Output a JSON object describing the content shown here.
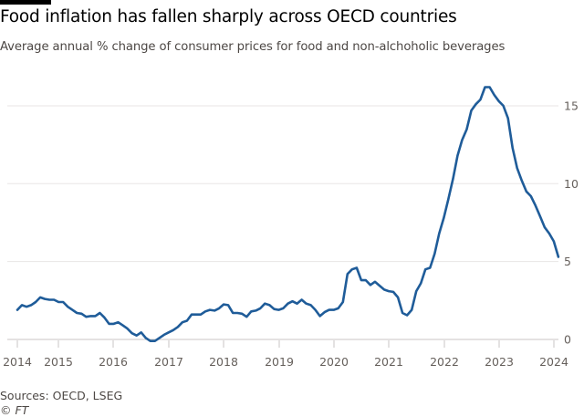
{
  "chart_data": {
    "type": "line",
    "title": "Food inflation has fallen sharply across OECD countries",
    "subtitle": "Average annual % change of consumer prices for food and non-alchoholic beverages",
    "xlabel": "",
    "ylabel": "",
    "ylim": [
      0,
      17
    ],
    "yticks": [
      "0",
      "5",
      "10",
      "15"
    ],
    "ytick_values": [
      0,
      5,
      10,
      15
    ],
    "xticks": [
      "2014",
      "2015",
      "2016",
      "2017",
      "2018",
      "2019",
      "2020",
      "2021",
      "2022",
      "2023",
      "2024"
    ],
    "y_axis_position": "right",
    "grid": "horizontal",
    "line_color": "#1f5c99",
    "x": [
      "2014-04",
      "2014-05",
      "2014-06",
      "2014-07",
      "2014-08",
      "2014-09",
      "2014-10",
      "2014-11",
      "2014-12",
      "2015-01",
      "2015-02",
      "2015-03",
      "2015-04",
      "2015-05",
      "2015-06",
      "2015-07",
      "2015-08",
      "2015-09",
      "2015-10",
      "2015-11",
      "2015-12",
      "2016-01",
      "2016-02",
      "2016-03",
      "2016-04",
      "2016-05",
      "2016-06",
      "2016-07",
      "2016-08",
      "2016-09",
      "2016-10",
      "2016-11",
      "2016-12",
      "2017-01",
      "2017-02",
      "2017-03",
      "2017-04",
      "2017-05",
      "2017-06",
      "2017-07",
      "2017-08",
      "2017-09",
      "2017-10",
      "2017-11",
      "2017-12",
      "2018-01",
      "2018-02",
      "2018-03",
      "2018-04",
      "2018-05",
      "2018-06",
      "2018-07",
      "2018-08",
      "2018-09",
      "2018-10",
      "2018-11",
      "2018-12",
      "2019-01",
      "2019-02",
      "2019-03",
      "2019-04",
      "2019-05",
      "2019-06",
      "2019-07",
      "2019-08",
      "2019-09",
      "2019-10",
      "2019-11",
      "2019-12",
      "2020-01",
      "2020-02",
      "2020-03",
      "2020-04",
      "2020-05",
      "2020-06",
      "2020-07",
      "2020-08",
      "2020-09",
      "2020-10",
      "2020-11",
      "2020-12",
      "2021-01",
      "2021-02",
      "2021-03",
      "2021-04",
      "2021-05",
      "2021-06",
      "2021-07",
      "2021-08",
      "2021-09",
      "2021-10",
      "2021-11",
      "2021-12",
      "2022-01",
      "2022-02",
      "2022-03",
      "2022-04",
      "2022-05",
      "2022-06",
      "2022-07",
      "2022-08",
      "2022-09",
      "2022-10",
      "2022-11",
      "2022-12",
      "2023-01",
      "2023-02",
      "2023-03",
      "2023-04",
      "2023-05",
      "2023-06",
      "2023-07",
      "2023-08",
      "2023-09",
      "2023-10",
      "2023-11",
      "2023-12",
      "2024-01",
      "2024-02"
    ],
    "values": [
      1.9,
      2.2,
      2.1,
      2.2,
      2.4,
      2.7,
      2.6,
      2.55,
      2.55,
      2.4,
      2.4,
      2.1,
      1.9,
      1.7,
      1.65,
      1.45,
      1.5,
      1.5,
      1.7,
      1.4,
      1.0,
      1.0,
      1.1,
      0.9,
      0.7,
      0.4,
      0.25,
      0.45,
      0.1,
      -0.1,
      -0.1,
      0.1,
      0.3,
      0.45,
      0.6,
      0.8,
      1.1,
      1.2,
      1.6,
      1.6,
      1.6,
      1.8,
      1.9,
      1.85,
      2.0,
      2.25,
      2.2,
      1.7,
      1.7,
      1.65,
      1.45,
      1.8,
      1.85,
      2.0,
      2.3,
      2.2,
      1.95,
      1.9,
      2.0,
      2.3,
      2.45,
      2.3,
      2.55,
      2.3,
      2.2,
      1.9,
      1.5,
      1.75,
      1.9,
      1.9,
      2.0,
      2.4,
      4.2,
      4.5,
      4.6,
      3.8,
      3.8,
      3.5,
      3.7,
      3.45,
      3.2,
      3.1,
      3.05,
      2.7,
      1.7,
      1.55,
      1.9,
      3.1,
      3.6,
      4.5,
      4.6,
      5.5,
      6.8,
      7.8,
      9.0,
      10.3,
      11.8,
      12.8,
      13.5,
      14.7,
      15.1,
      15.4,
      16.2,
      16.2,
      15.7,
      15.3,
      15.0,
      14.2,
      12.3,
      11.0,
      10.2,
      9.5,
      9.2,
      8.6,
      7.9,
      7.2,
      6.8,
      6.3,
      5.3
    ]
  },
  "footer": {
    "source": "Sources: OECD, LSEG",
    "credit": "© FT"
  }
}
